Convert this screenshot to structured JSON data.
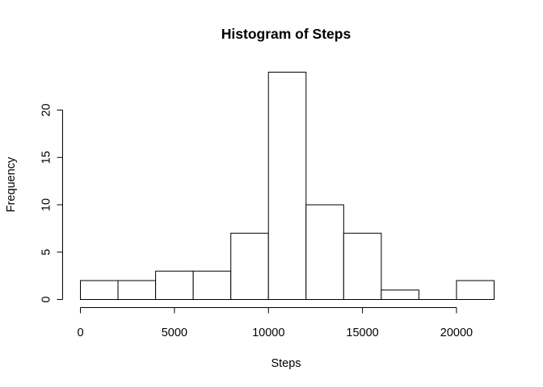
{
  "chart_data": {
    "type": "bar",
    "subtype": "histogram",
    "title": "Histogram of Steps",
    "xlabel": "Steps",
    "ylabel": "Frequency",
    "bin_edges": [
      0,
      2000,
      4000,
      6000,
      8000,
      10000,
      12000,
      14000,
      16000,
      18000,
      20000,
      22000
    ],
    "values": [
      2,
      2,
      3,
      3,
      7,
      24,
      10,
      7,
      1,
      0,
      2
    ],
    "xlim": [
      0,
      22000
    ],
    "ylim": [
      0,
      24
    ],
    "x_ticks": [
      0,
      5000,
      10000,
      15000,
      20000
    ],
    "x_tick_labels": [
      "0",
      "5000",
      "10000",
      "15000",
      "20000"
    ],
    "y_ticks": [
      0,
      5,
      10,
      15,
      20
    ],
    "y_tick_labels": [
      "0",
      "5",
      "10",
      "15",
      "20"
    ],
    "grid": false,
    "colors": {
      "bar_fill": "#ffffff",
      "bar_stroke": "#000000"
    }
  }
}
